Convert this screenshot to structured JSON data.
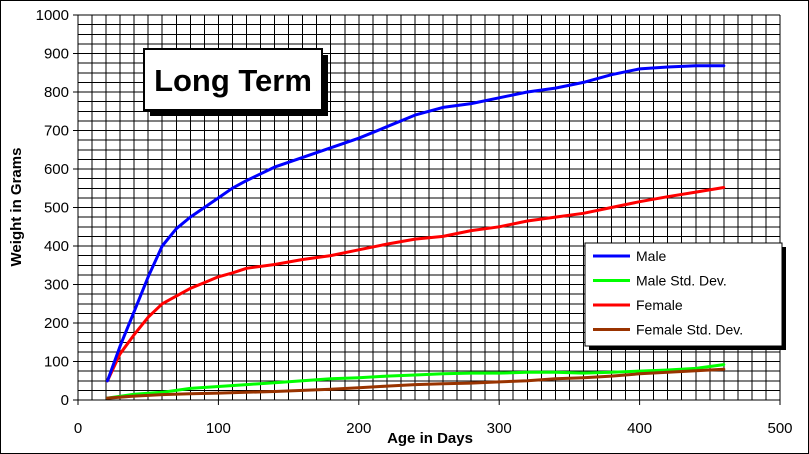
{
  "chart_data": {
    "type": "line",
    "title": "Long Term",
    "xlabel": "Age in Days",
    "ylabel": "Weight in Grams",
    "xlim": [
      0,
      500
    ],
    "ylim": [
      0,
      1000
    ],
    "xticks": [
      0,
      100,
      200,
      300,
      400,
      500
    ],
    "yticks": [
      0,
      100,
      200,
      300,
      400,
      500,
      600,
      700,
      800,
      900,
      1000
    ],
    "x_minor_step": 10,
    "y_minor_step": 25,
    "grid": true,
    "legend_position": "right",
    "series": [
      {
        "name": "Male",
        "color": "#0000ff",
        "x": [
          21,
          30,
          40,
          50,
          60,
          70,
          80,
          90,
          100,
          110,
          120,
          140,
          160,
          180,
          200,
          220,
          240,
          260,
          280,
          300,
          320,
          340,
          360,
          380,
          400,
          420,
          440,
          460
        ],
        "y": [
          50,
          140,
          230,
          320,
          400,
          445,
          475,
          500,
          525,
          550,
          570,
          605,
          630,
          655,
          680,
          710,
          740,
          760,
          770,
          785,
          800,
          810,
          825,
          845,
          860,
          865,
          868,
          868
        ]
      },
      {
        "name": "Male Std. Dev.",
        "color": "#00ff00",
        "x": [
          21,
          40,
          60,
          80,
          100,
          120,
          140,
          160,
          180,
          200,
          220,
          240,
          260,
          280,
          300,
          320,
          340,
          360,
          380,
          400,
          420,
          440,
          460
        ],
        "y": [
          5,
          15,
          20,
          30,
          35,
          40,
          45,
          50,
          55,
          58,
          62,
          65,
          68,
          70,
          70,
          72,
          72,
          70,
          72,
          75,
          78,
          82,
          92
        ]
      },
      {
        "name": "Female",
        "color": "#ff0000",
        "x": [
          21,
          30,
          40,
          50,
          60,
          70,
          80,
          90,
          100,
          110,
          120,
          140,
          160,
          180,
          200,
          220,
          240,
          260,
          280,
          300,
          320,
          340,
          360,
          380,
          400,
          420,
          440,
          460
        ],
        "y": [
          50,
          120,
          170,
          215,
          250,
          270,
          290,
          305,
          320,
          330,
          342,
          352,
          365,
          375,
          390,
          405,
          418,
          425,
          440,
          450,
          465,
          475,
          485,
          500,
          515,
          528,
          540,
          552
        ]
      },
      {
        "name": "Female Std. Dev.",
        "color": "#993300",
        "x": [
          21,
          40,
          60,
          80,
          100,
          120,
          140,
          160,
          180,
          200,
          220,
          240,
          260,
          280,
          300,
          320,
          340,
          360,
          380,
          400,
          420,
          440,
          460
        ],
        "y": [
          5,
          10,
          14,
          16,
          18,
          20,
          22,
          25,
          28,
          32,
          36,
          40,
          42,
          44,
          47,
          50,
          55,
          58,
          62,
          68,
          72,
          76,
          80
        ]
      }
    ]
  }
}
